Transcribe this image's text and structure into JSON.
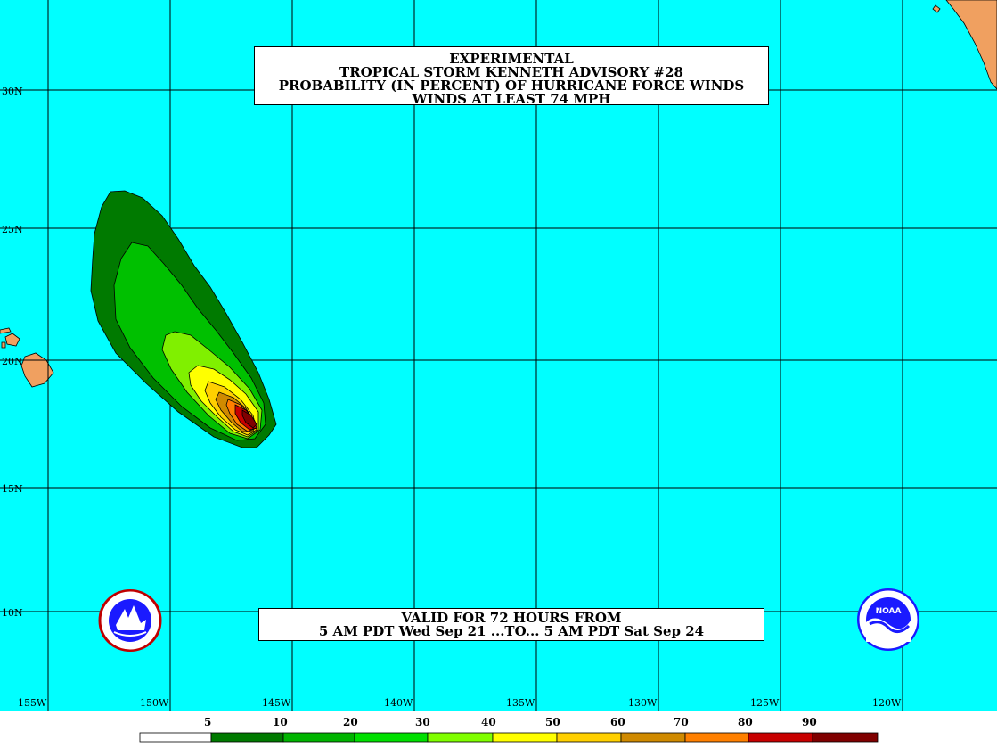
{
  "title": {
    "lines": [
      "EXPERIMENTAL",
      "TROPICAL STORM KENNETH ADVISORY #28",
      "PROBABILITY (IN PERCENT) OF HURRICANE FORCE WINDS",
      "WINDS AT LEAST 74 MPH"
    ]
  },
  "valid": {
    "lines": [
      "VALID FOR 72 HOURS FROM",
      "5 AM PDT Wed Sep 21 ...TO... 5 AM PDT Sat Sep 24"
    ]
  },
  "latitude_labels": [
    "30N",
    "25N",
    "20N",
    "15N",
    "10N"
  ],
  "longitude_labels": [
    "155W",
    "150W",
    "145W",
    "140W",
    "135W",
    "130W",
    "125W",
    "120W"
  ],
  "colorbar": {
    "labels": [
      "5",
      "10",
      "20",
      "30",
      "40",
      "50",
      "60",
      "70",
      "80",
      "90"
    ],
    "colors": [
      "#ffffff",
      "#007a00",
      "#00b400",
      "#00e000",
      "#80ff00",
      "#ffff00",
      "#ffd000",
      "#d08a00",
      "#ff8000",
      "#c80000",
      "#800000",
      "#800080"
    ]
  },
  "colors": {
    "ocean": "#00ffff",
    "land": "#f0a060",
    "contour_5": "#007a00",
    "contour_10": "#00c000",
    "contour_20": "#80f000",
    "contour_30": "#ffff00",
    "contour_40": "#ffd000",
    "contour_50": "#d08a00",
    "contour_60": "#ff8000",
    "contour_70": "#c80000",
    "contour_80": "#800000"
  },
  "logos": {
    "left": "nws-logo-icon",
    "right": "noaa-logo-icon"
  }
}
